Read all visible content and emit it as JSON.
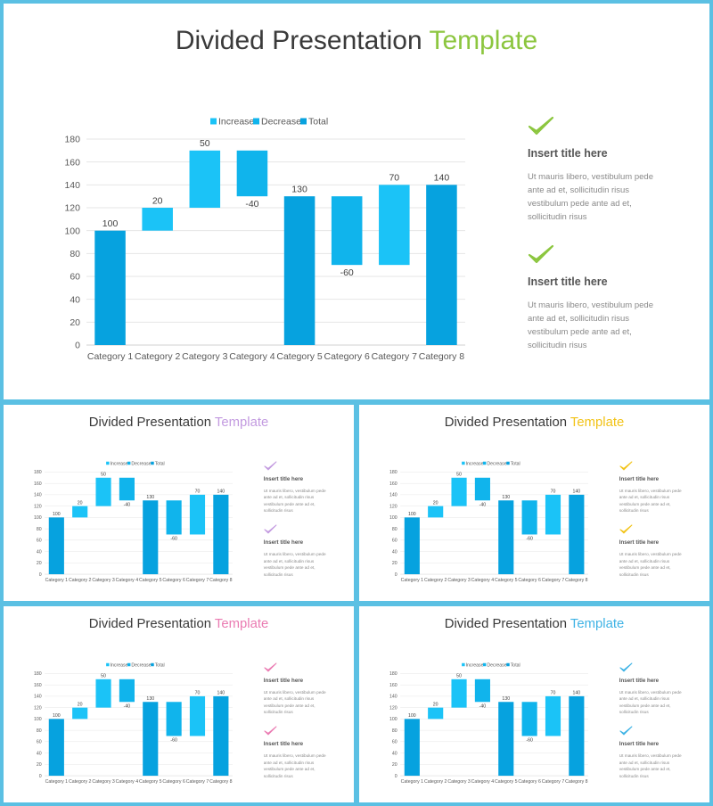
{
  "title_main": "Divided Presentation",
  "title_accent": "Template",
  "slides": [
    {
      "accent": "#8cc63f"
    },
    {
      "accent": "#c39be0"
    },
    {
      "accent": "#f2c318"
    },
    {
      "accent": "#ea7bb2"
    },
    {
      "accent": "#3fb3e5"
    }
  ],
  "chart_data": {
    "type": "bar",
    "subtype": "waterfall",
    "legend": [
      "Increase",
      "Decrease",
      "Total"
    ],
    "legend_position": "top",
    "categories": [
      "Category 1",
      "Category 2",
      "Category 3",
      "Category 4",
      "Category 5",
      "Category 6",
      "Category 7",
      "Category 8"
    ],
    "steps": [
      {
        "kind": "total",
        "start": 0,
        "end": 100,
        "label": "100"
      },
      {
        "kind": "increase",
        "start": 100,
        "end": 120,
        "label": "20"
      },
      {
        "kind": "increase",
        "start": 120,
        "end": 170,
        "label": "50"
      },
      {
        "kind": "decrease",
        "start": 170,
        "end": 130,
        "label": "-40"
      },
      {
        "kind": "total",
        "start": 0,
        "end": 130,
        "label": "130"
      },
      {
        "kind": "decrease",
        "start": 130,
        "end": 70,
        "label": "-60"
      },
      {
        "kind": "increase",
        "start": 70,
        "end": 140,
        "label": "70"
      },
      {
        "kind": "total",
        "start": 0,
        "end": 140,
        "label": "140"
      }
    ],
    "ylim": [
      0,
      180
    ],
    "yticks": [
      "0",
      "20",
      "40",
      "60",
      "80",
      "100",
      "120",
      "140",
      "160",
      "180"
    ],
    "grid": true,
    "colors": {
      "increase": "#1bc3f7",
      "decrease": "#10b4ec",
      "total": "#06a2df"
    }
  },
  "sidebar": {
    "items": [
      {
        "icon": "check-icon",
        "title": "Insert title here",
        "body": "Ut mauris libero, vestibulum pede ante ad et, sollicitudin risus vestibulum pede ante ad et, sollicitudin risus"
      },
      {
        "icon": "check-icon",
        "title": "Insert title here",
        "body": "Ut mauris libero, vestibulum pede ante ad et, sollicitudin risus vestibulum pede ante ad et, sollicitudin risus"
      }
    ]
  }
}
